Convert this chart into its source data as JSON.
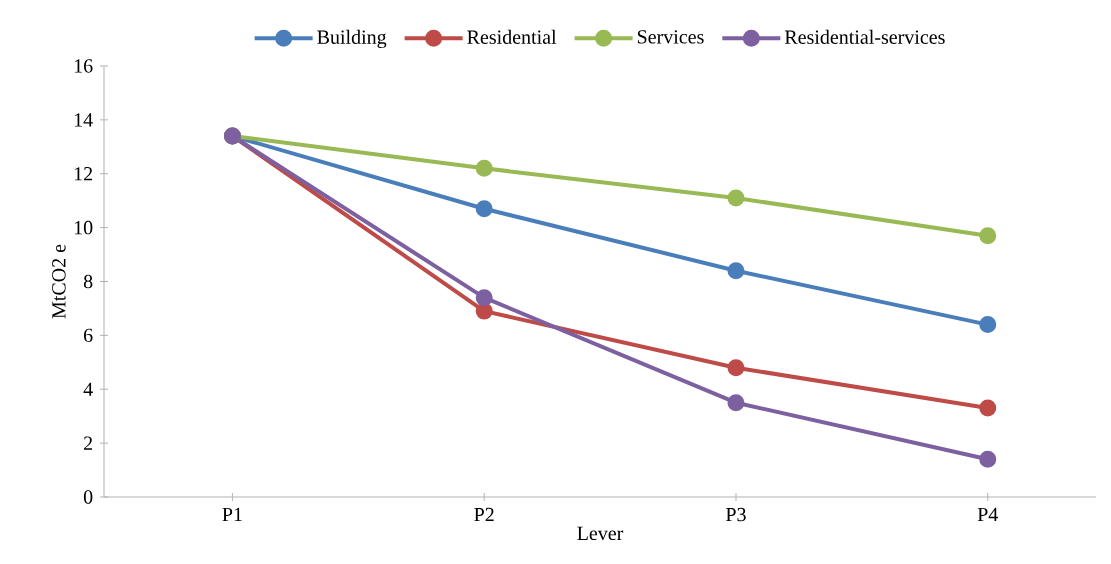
{
  "chart_data": {
    "type": "line",
    "xlabel": "Lever",
    "ylabel": "MtCO2 e",
    "categories": [
      "P1",
      "P2",
      "P3",
      "P4"
    ],
    "series": [
      {
        "name": "Building",
        "color": "#4a7ebb",
        "values": [
          13.4,
          10.7,
          8.4,
          6.4
        ]
      },
      {
        "name": "Residential",
        "color": "#be4b48",
        "values": [
          13.4,
          6.9,
          4.8,
          3.3
        ]
      },
      {
        "name": "Services",
        "color": "#98b954",
        "values": [
          13.4,
          12.2,
          11.1,
          9.7
        ]
      },
      {
        "name": "Residential-services",
        "color": "#7d60a0",
        "values": [
          13.4,
          7.4,
          3.5,
          1.4
        ]
      }
    ],
    "ylim": [
      0,
      16
    ],
    "yticks": [
      0,
      2,
      4,
      6,
      8,
      10,
      12,
      14,
      16
    ],
    "grid": false,
    "legend": "top",
    "marker": "circle",
    "line_style": "solid"
  }
}
